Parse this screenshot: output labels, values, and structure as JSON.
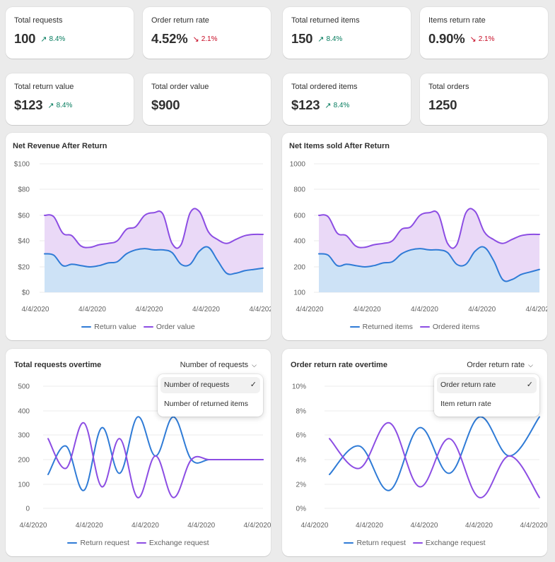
{
  "metrics": [
    {
      "label": "Total requests",
      "value": "100",
      "delta": "8.4%",
      "dir": "up"
    },
    {
      "label": "Order return rate",
      "value": "4.52%",
      "delta": "2.1%",
      "dir": "down"
    },
    {
      "label": "Total returned items",
      "value": "150",
      "delta": "8.4%",
      "dir": "up"
    },
    {
      "label": "Items return rate",
      "value": "0.90%",
      "delta": "2.1%",
      "dir": "down"
    },
    {
      "label": "Total return value",
      "value": "$123",
      "delta": "8.4%",
      "dir": "up"
    },
    {
      "label": "Total order value",
      "value": "$900",
      "delta": "",
      "dir": ""
    },
    {
      "label": "Total ordered items",
      "value": "$123",
      "delta": "8.4%",
      "dir": "up"
    },
    {
      "label": "Total orders",
      "value": "1250",
      "delta": "",
      "dir": ""
    }
  ],
  "colors": {
    "up": "#047b5d",
    "down": "#c70a24",
    "blue_line": "#2f7bd6",
    "purple_line": "#8c4de3",
    "blue_fill": "#cde2f6",
    "purple_fill": "#ead9f7"
  },
  "icons": {
    "up": "arrow-up-right-icon",
    "down": "arrow-down-right-icon"
  },
  "charts": {
    "net_revenue": {
      "title": "Net Revenue After Return",
      "legend": [
        "Return value",
        "Order value"
      ]
    },
    "net_items": {
      "title": "Net Items sold After Return",
      "legend": [
        "Returned items",
        "Ordered items"
      ]
    },
    "total_requests": {
      "title": "Total requests overtime",
      "dropdown": {
        "selected": "Number of requests",
        "options": [
          "Number of requests",
          "Number of returned items"
        ]
      },
      "legend": [
        "Return request",
        "Exchange request"
      ]
    },
    "return_rate": {
      "title": "Order return rate overtime",
      "dropdown": {
        "selected": "Order return rate",
        "options": [
          "Order return rate",
          "Item return rate"
        ]
      },
      "legend": [
        "Return request",
        "Exchange request"
      ]
    }
  },
  "chart_data": [
    {
      "type": "area",
      "title": "Net Revenue After Return",
      "x_ticks": [
        "4/4/2020",
        "4/4/2020",
        "4/4/2020",
        "4/4/2020",
        "4/4/2020"
      ],
      "y_ticks": [
        "$0",
        "$20",
        "$40",
        "$60",
        "$80",
        "$100"
      ],
      "ylim": [
        0,
        100
      ],
      "x": [
        0,
        1,
        2,
        3,
        4,
        5,
        6,
        7,
        8,
        9,
        10,
        11,
        12,
        13,
        14,
        15,
        16,
        17,
        18,
        19,
        20,
        21,
        22,
        23,
        24
      ],
      "series": [
        {
          "name": "Return value",
          "values": [
            30,
            29,
            21,
            22,
            21,
            20,
            21,
            23,
            24,
            30,
            33,
            34,
            33,
            33,
            31,
            22,
            22,
            32,
            35,
            25,
            15,
            15,
            17,
            18,
            19
          ]
        },
        {
          "name": "Order value",
          "values": [
            60,
            59,
            46,
            44,
            36,
            35,
            37,
            38,
            40,
            49,
            51,
            60,
            62,
            61,
            38,
            37,
            62,
            63,
            47,
            41,
            38,
            41,
            44,
            45,
            45
          ]
        }
      ],
      "grid": true,
      "legend": "bottom"
    },
    {
      "type": "area",
      "title": "Net Items sold After Return",
      "x_ticks": [
        "4/4/2020",
        "4/4/2020",
        "4/4/2020",
        "4/4/2020",
        "4/4/2020"
      ],
      "y_ticks": [
        "100",
        "200",
        "400",
        "600",
        "800",
        "1000"
      ],
      "ylim": [
        0,
        1000
      ],
      "x": [
        0,
        1,
        2,
        3,
        4,
        5,
        6,
        7,
        8,
        9,
        10,
        11,
        12,
        13,
        14,
        15,
        16,
        17,
        18,
        19,
        20,
        21,
        22,
        23,
        24
      ],
      "series": [
        {
          "name": "Returned items",
          "values": [
            300,
            290,
            210,
            220,
            210,
            200,
            210,
            230,
            240,
            300,
            330,
            340,
            330,
            330,
            310,
            220,
            220,
            320,
            350,
            250,
            150,
            150,
            170,
            180,
            190
          ]
        },
        {
          "name": "Ordered items",
          "values": [
            600,
            590,
            460,
            440,
            360,
            350,
            370,
            380,
            400,
            490,
            510,
            600,
            620,
            610,
            380,
            370,
            620,
            630,
            470,
            410,
            380,
            410,
            440,
            450,
            450
          ]
        }
      ],
      "grid": true,
      "legend": "bottom"
    },
    {
      "type": "line",
      "title": "Total requests overtime",
      "x_ticks": [
        "4/4/2020",
        "4/4/2020",
        "4/4/2020",
        "4/4/2020",
        "4/4/2020"
      ],
      "y_ticks": [
        "0",
        "100",
        "200",
        "300",
        "400",
        "500"
      ],
      "ylim": [
        0,
        500
      ],
      "x": [
        0,
        1,
        2,
        3,
        4,
        5,
        6,
        7,
        8,
        9,
        10,
        11,
        12
      ],
      "series": [
        {
          "name": "Return request",
          "values": [
            140,
            255,
            75,
            330,
            145,
            375,
            215,
            375,
            200,
            200,
            200,
            200,
            200
          ]
        },
        {
          "name": "Exchange request",
          "values": [
            285,
            165,
            350,
            90,
            285,
            45,
            215,
            45,
            200,
            200,
            200,
            200,
            200
          ]
        }
      ],
      "grid": true,
      "legend": "bottom"
    },
    {
      "type": "line",
      "title": "Order return rate overtime",
      "x_ticks": [
        "4/4/2020",
        "4/4/2020",
        "4/4/2020",
        "4/4/2020",
        "4/4/2020"
      ],
      "y_ticks": [
        "0%",
        "2%",
        "4%",
        "6%",
        "8%",
        "10%"
      ],
      "ylim": [
        0,
        10
      ],
      "x": [
        0,
        1,
        2,
        3,
        4,
        5,
        6,
        7
      ],
      "series": [
        {
          "name": "Return request",
          "values": [
            2.8,
            5.1,
            1.5,
            6.6,
            2.9,
            7.5,
            4.3,
            7.5
          ]
        },
        {
          "name": "Exchange request",
          "values": [
            5.7,
            3.3,
            7.0,
            1.8,
            5.7,
            0.9,
            4.3,
            0.9
          ]
        }
      ],
      "grid": true,
      "legend": "bottom"
    }
  ]
}
